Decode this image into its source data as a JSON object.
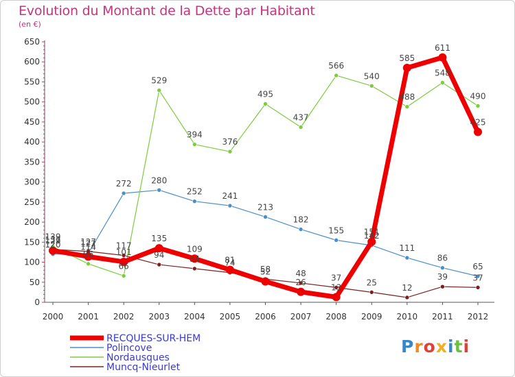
{
  "title": "Evolution du Montant de la Dette par Habitant",
  "unit": "(en €)",
  "logo": {
    "text": "Proxiti",
    "colors": [
      "#3a86c8",
      "#f08c1e",
      "#e0403a",
      "#f0b020",
      "#3a86c8",
      "#6cc040",
      "#e0403a"
    ]
  },
  "chart_data": {
    "type": "line",
    "x": [
      2000,
      2001,
      2002,
      2003,
      2004,
      2005,
      2006,
      2007,
      2008,
      2009,
      2010,
      2011,
      2012
    ],
    "ylim": [
      0,
      650
    ],
    "yticks": [
      0,
      50,
      100,
      150,
      200,
      250,
      300,
      350,
      400,
      450,
      500,
      550,
      600,
      650
    ],
    "grid": false,
    "legend_position": "bottom-left",
    "series": [
      {
        "name": "Polincove",
        "color": "#4a8fc8",
        "values": [
          120,
          122,
          272,
          280,
          252,
          241,
          213,
          182,
          155,
          142,
          111,
          86,
          65
        ],
        "labels": [
          "120",
          "122",
          "272",
          "280",
          "252",
          "241",
          "213",
          "182",
          "155",
          "142",
          "111",
          "86",
          "65"
        ]
      },
      {
        "name": "Nordausques",
        "color": "#7ccc3c",
        "values": [
          139,
          96,
          66,
          529,
          394,
          376,
          495,
          437,
          566,
          540,
          488,
          548,
          490
        ],
        "labels": [
          "139",
          "96",
          "66",
          "529",
          "394",
          "376",
          "495",
          "437",
          "566",
          "540",
          "488",
          "548",
          "490"
        ]
      },
      {
        "name": "Muncq-Nieurlet",
        "color": "#7a2020",
        "values": [
          132,
          127,
          117,
          94,
          84,
          74,
          58,
          48,
          37,
          25,
          12,
          39,
          37
        ],
        "labels": [
          "132",
          "127",
          "117",
          "94",
          "84",
          "74",
          "58",
          "48",
          "37",
          "25",
          "12",
          "39",
          "37"
        ]
      },
      {
        "name": "RECQUES-SUR-HEM",
        "color": "#ee0000",
        "values": [
          129,
          114,
          101,
          135,
          109,
          81,
          52,
          26,
          13,
          151,
          585,
          611,
          425
        ],
        "labels": [
          "129",
          "114",
          "101",
          "135",
          "109",
          "81",
          "52",
          "26",
          "13",
          "151",
          "585",
          "611",
          "425"
        ]
      }
    ],
    "legend": [
      "RECQUES-SUR-HEM",
      "Polincove",
      "Nordausques",
      "Muncq-Nieurlet"
    ]
  }
}
